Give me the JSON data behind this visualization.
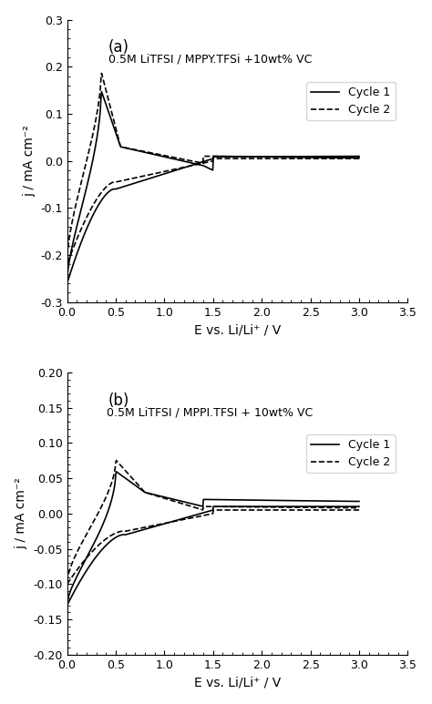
{
  "panel_a": {
    "title": "0.5M LiTFSI / MPPY.TFSi +10wt% VC",
    "label": "(a)",
    "ylim": [
      -0.3,
      0.3
    ],
    "yticks": [
      -0.3,
      -0.2,
      -0.1,
      0.0,
      0.1,
      0.2,
      0.3
    ],
    "xlim": [
      0.0,
      3.5
    ],
    "xticks": [
      0.0,
      0.5,
      1.0,
      1.5,
      2.0,
      2.5,
      3.0,
      3.5
    ],
    "ylabel": "j / mA cm⁻²",
    "xlabel": "E vs. Li/Li⁺ / V"
  },
  "panel_b": {
    "title": "0.5M LiTFSI / MPPI.TFSI + 10wt% VC",
    "label": "(b)",
    "ylim": [
      -0.2,
      0.2
    ],
    "yticks": [
      -0.2,
      -0.15,
      -0.1,
      -0.05,
      0.0,
      0.05,
      0.1,
      0.15,
      0.2
    ],
    "xlim": [
      0.0,
      3.5
    ],
    "xticks": [
      0.0,
      0.5,
      1.0,
      1.5,
      2.0,
      2.5,
      3.0,
      3.5
    ],
    "ylabel": "j / mA cm⁻²",
    "xlabel": "E vs. Li/Li⁺ / V"
  },
  "legend": [
    "Cycle 1",
    "Cycle 2"
  ],
  "line_colors": [
    "black",
    "black"
  ],
  "line_styles": [
    "-",
    "--"
  ],
  "background_color": "white"
}
